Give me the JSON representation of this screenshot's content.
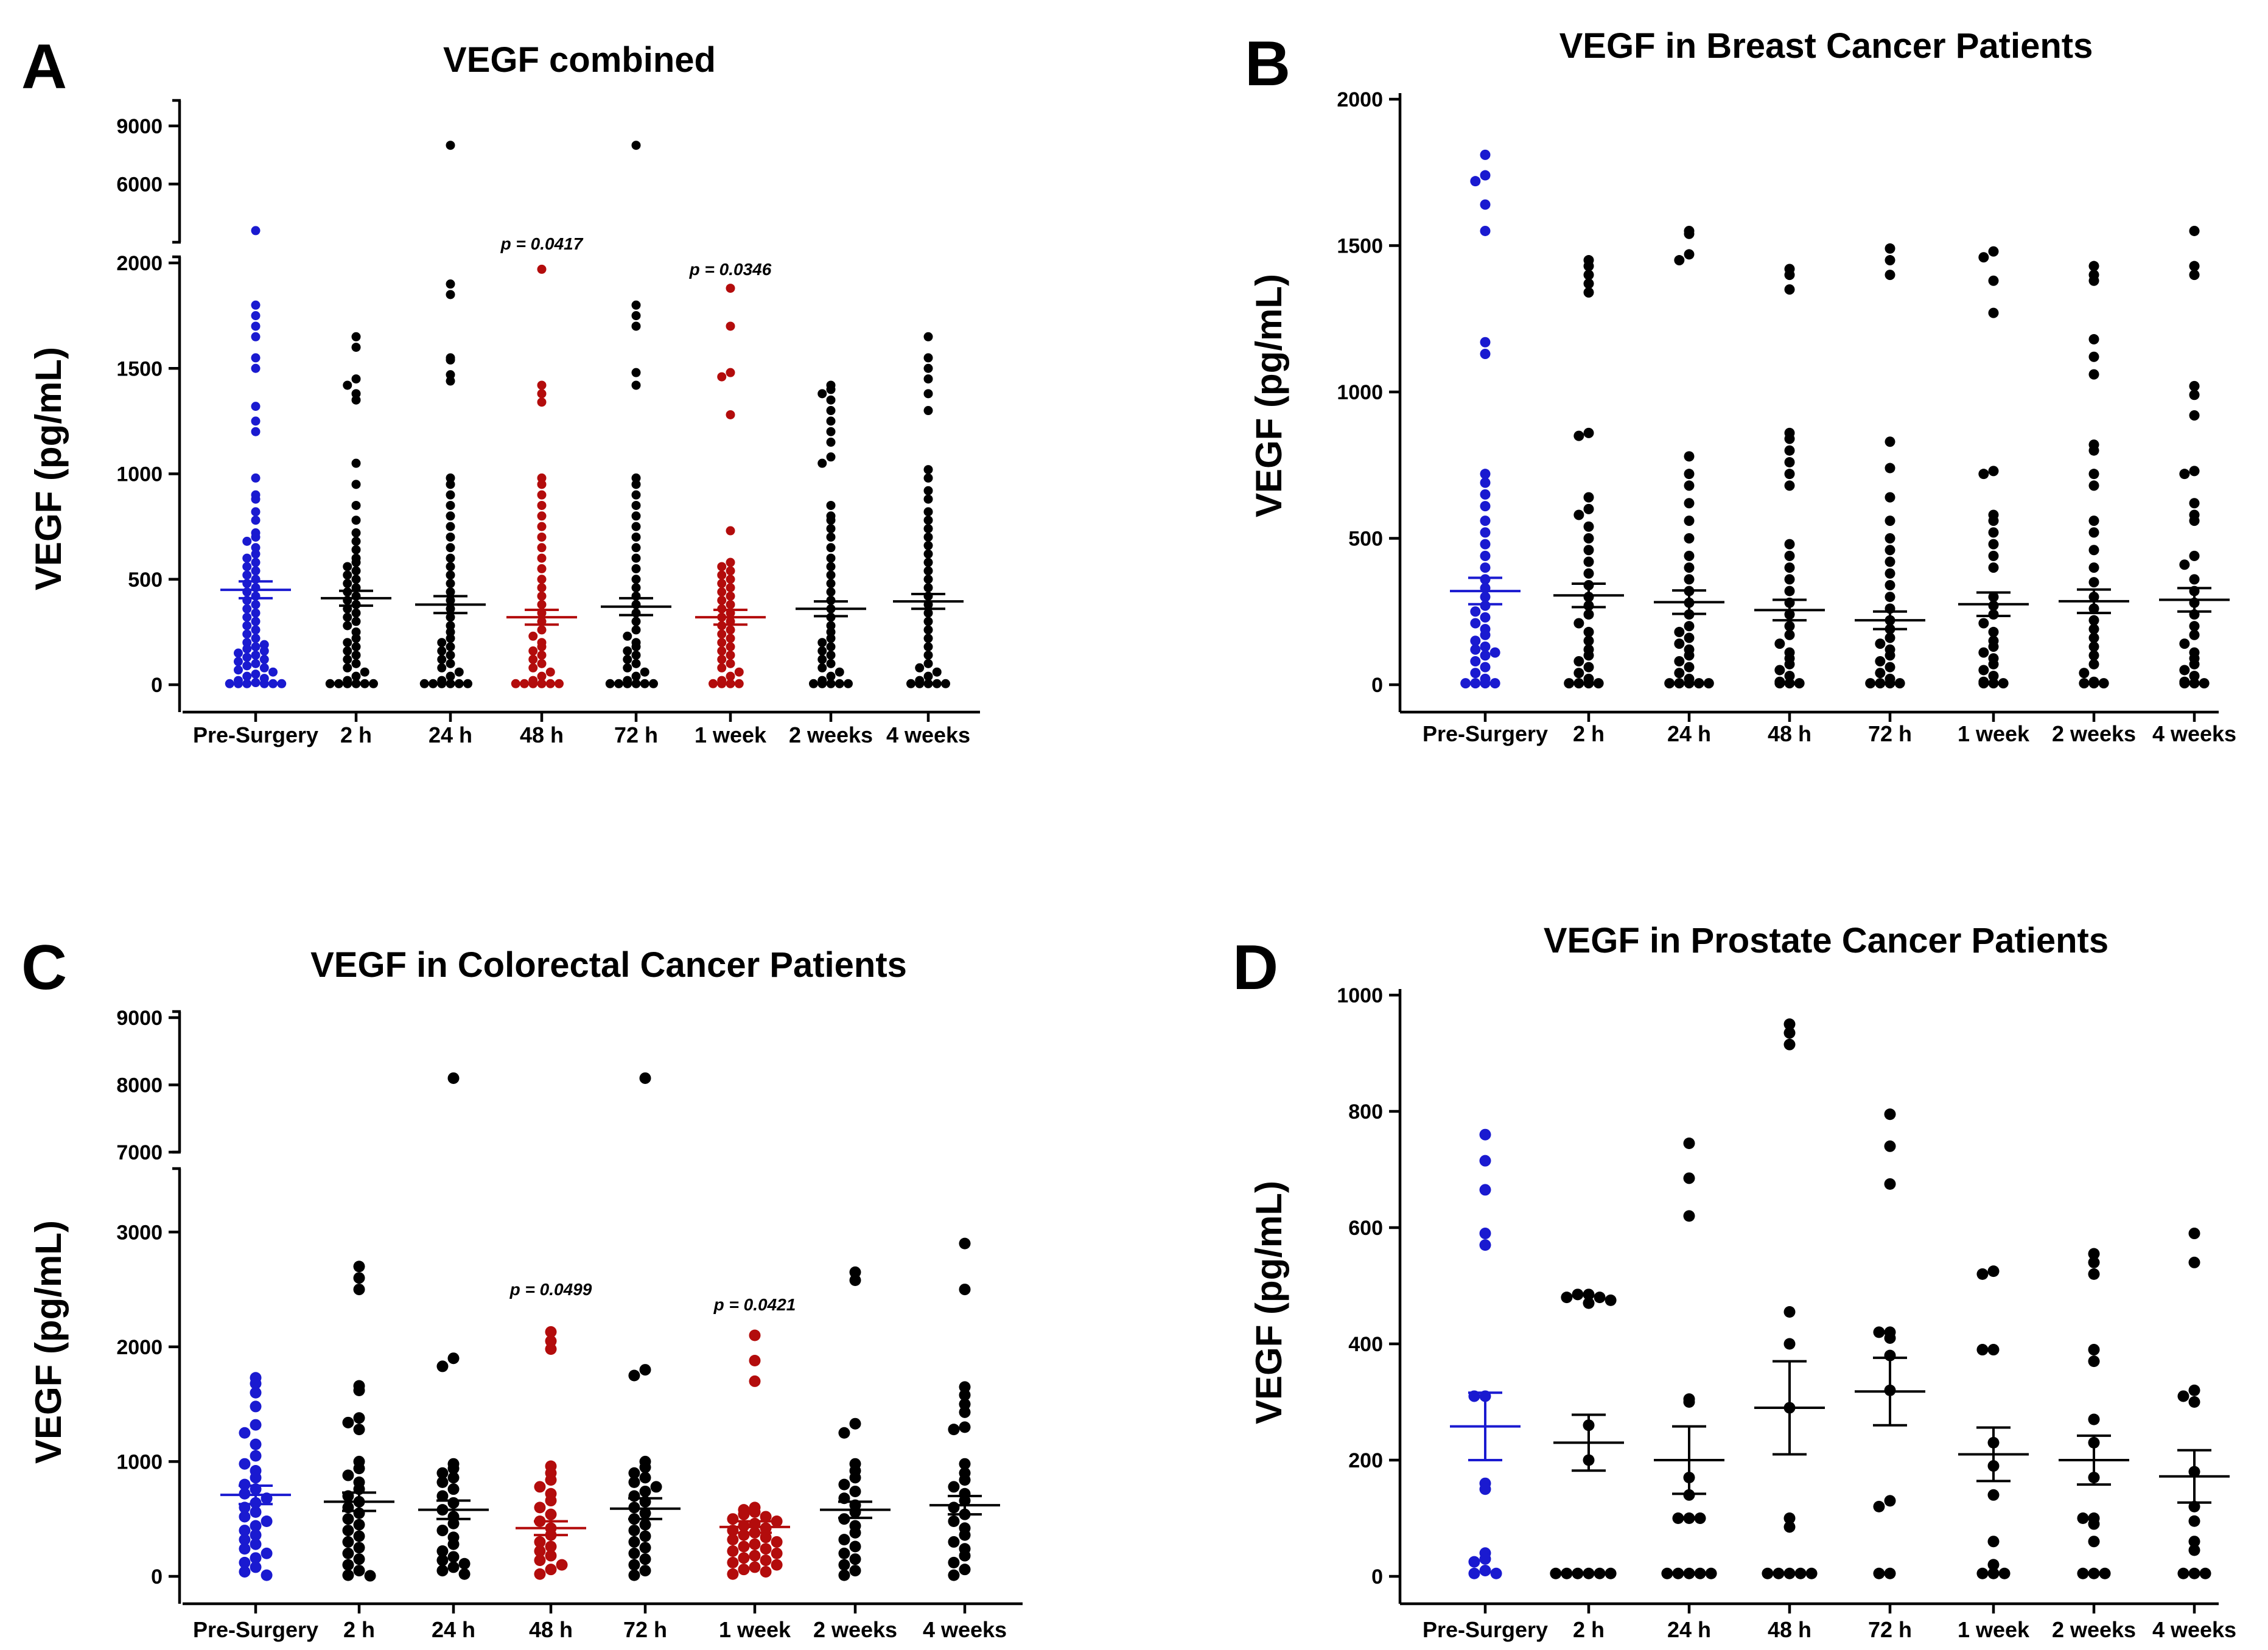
{
  "figure": {
    "ylabel": "VEGF (pg/mL)",
    "colors": {
      "presurgery": "#1a1ad0",
      "significant": "#b30c0c",
      "other": "#000000"
    }
  },
  "chart_data": [
    {
      "type": "scatter",
      "panel": "A",
      "title": "VEGF combined",
      "ylabel": "VEGF (pg/mL)",
      "categories": [
        "Pre-Surgery",
        "2 h",
        "24 h",
        "48 h",
        "72 h",
        "1 week",
        "2 weeks",
        "4 weeks"
      ],
      "y_axis": {
        "lower_range": [
          0,
          2000
        ],
        "lower_ticks": [
          "0",
          "500",
          "1000",
          "1500",
          "2000"
        ],
        "upper_range": [
          3000,
          10000
        ],
        "upper_ticks": [
          "6000",
          "9000"
        ]
      },
      "colors": [
        "presurgery",
        "other",
        "other",
        "significant",
        "other",
        "significant",
        "other",
        "other"
      ],
      "means": [
        450,
        410,
        380,
        320,
        370,
        320,
        360,
        395
      ],
      "sems": [
        40,
        35,
        40,
        35,
        40,
        35,
        35,
        35
      ],
      "values": [
        [
          3600,
          1800,
          1750,
          1700,
          1650,
          1550,
          1500,
          1320,
          1250,
          1200,
          980,
          900,
          880,
          820,
          780,
          720,
          700,
          680,
          650,
          620,
          600,
          580,
          560,
          540,
          520,
          500,
          480,
          460,
          440,
          420,
          400,
          380,
          360,
          340,
          320,
          300,
          280,
          260,
          240,
          220,
          200,
          190,
          180,
          170,
          160,
          150,
          140,
          130,
          120,
          110,
          100,
          90,
          80,
          70,
          60,
          50,
          40,
          30,
          20,
          10,
          5,
          5,
          5,
          5,
          5,
          5
        ],
        [
          1650,
          1600,
          1450,
          1420,
          1380,
          1350,
          1050,
          950,
          850,
          780,
          720,
          680,
          640,
          600,
          580,
          560,
          540,
          520,
          500,
          480,
          460,
          440,
          420,
          400,
          380,
          360,
          340,
          320,
          300,
          280,
          250,
          220,
          200,
          180,
          160,
          140,
          120,
          100,
          80,
          60,
          40,
          20,
          5,
          5,
          5,
          5,
          5,
          5
        ],
        [
          8000,
          1900,
          1850,
          1550,
          1540,
          1470,
          1440,
          980,
          950,
          900,
          850,
          800,
          750,
          700,
          650,
          600,
          560,
          520,
          480,
          440,
          400,
          360,
          320,
          280,
          250,
          220,
          200,
          180,
          160,
          140,
          120,
          100,
          80,
          60,
          40,
          20,
          5,
          5,
          5,
          5,
          5,
          5
        ],
        [
          1970,
          1420,
          1380,
          1340,
          980,
          950,
          900,
          850,
          800,
          750,
          700,
          650,
          600,
          550,
          500,
          460,
          420,
          380,
          340,
          300,
          260,
          230,
          200,
          180,
          160,
          140,
          120,
          100,
          80,
          60,
          40,
          20,
          5,
          5,
          5,
          5,
          5,
          5
        ],
        [
          8000,
          1800,
          1750,
          1700,
          1480,
          1420,
          980,
          950,
          900,
          850,
          800,
          750,
          700,
          650,
          600,
          550,
          500,
          460,
          420,
          380,
          340,
          300,
          260,
          230,
          200,
          180,
          160,
          140,
          120,
          100,
          80,
          60,
          40,
          20,
          5,
          5,
          5,
          5,
          5,
          5
        ],
        [
          1880,
          1700,
          1480,
          1460,
          1280,
          730,
          580,
          560,
          540,
          520,
          500,
          480,
          460,
          440,
          420,
          400,
          380,
          360,
          340,
          320,
          300,
          280,
          260,
          240,
          220,
          200,
          180,
          160,
          140,
          120,
          100,
          80,
          60,
          40,
          20,
          5,
          5,
          5,
          5
        ],
        [
          1420,
          1400,
          1380,
          1350,
          1300,
          1250,
          1200,
          1150,
          1080,
          1050,
          850,
          800,
          780,
          740,
          700,
          650,
          600,
          560,
          520,
          480,
          440,
          400,
          360,
          320,
          280,
          250,
          220,
          200,
          180,
          160,
          140,
          120,
          100,
          80,
          60,
          40,
          20,
          5,
          5,
          5,
          5,
          5
        ],
        [
          1650,
          1550,
          1500,
          1450,
          1380,
          1300,
          1020,
          980,
          920,
          880,
          820,
          780,
          740,
          700,
          660,
          620,
          580,
          540,
          500,
          460,
          420,
          380,
          340,
          300,
          260,
          220,
          180,
          140,
          100,
          80,
          60,
          40,
          20,
          5,
          5,
          5,
          5,
          5
        ]
      ],
      "annotations": [
        {
          "category": "48 h",
          "text": "p = 0.0417"
        },
        {
          "category": "1 week",
          "text": "p = 0.0346"
        }
      ]
    },
    {
      "type": "scatter",
      "panel": "B",
      "title": "VEGF in Breast Cancer Patients",
      "ylabel": "VEGF (pg/mL)",
      "categories": [
        "Pre-Surgery",
        "2 h",
        "24 h",
        "48 h",
        "72 h",
        "1 week",
        "2 weeks",
        "4 weeks"
      ],
      "y_axis": {
        "range": [
          0,
          2000
        ],
        "ticks": [
          "0",
          "500",
          "1000",
          "1500",
          "2000"
        ]
      },
      "colors": [
        "presurgery",
        "other",
        "other",
        "other",
        "other",
        "other",
        "other",
        "other"
      ],
      "means": [
        320,
        305,
        282,
        255,
        220,
        275,
        285,
        290
      ],
      "sems": [
        45,
        40,
        40,
        35,
        30,
        40,
        40,
        40
      ],
      "values": [
        [
          1810,
          1740,
          1720,
          1640,
          1550,
          1170,
          1130,
          720,
          690,
          650,
          610,
          560,
          520,
          480,
          440,
          400,
          360,
          330,
          300,
          270,
          250,
          230,
          210,
          190,
          170,
          150,
          130,
          120,
          110,
          100,
          80,
          60,
          40,
          20,
          5,
          5,
          5,
          5
        ],
        [
          1450,
          1430,
          1400,
          1370,
          1340,
          860,
          850,
          640,
          600,
          580,
          540,
          500,
          460,
          420,
          380,
          340,
          300,
          270,
          240,
          210,
          180,
          150,
          120,
          100,
          80,
          60,
          40,
          20,
          5,
          5,
          5,
          5
        ],
        [
          1550,
          1540,
          1470,
          1450,
          780,
          720,
          680,
          620,
          560,
          500,
          440,
          400,
          360,
          320,
          280,
          240,
          200,
          180,
          160,
          140,
          120,
          100,
          80,
          60,
          40,
          20,
          5,
          5,
          5,
          5,
          5
        ],
        [
          1420,
          1400,
          1350,
          860,
          840,
          800,
          760,
          720,
          680,
          480,
          440,
          400,
          360,
          320,
          280,
          240,
          200,
          170,
          140,
          110,
          90,
          70,
          50,
          30,
          10,
          5,
          5,
          5
        ],
        [
          1490,
          1450,
          1400,
          830,
          740,
          640,
          560,
          500,
          460,
          420,
          380,
          340,
          300,
          260,
          220,
          190,
          160,
          140,
          120,
          100,
          80,
          60,
          40,
          20,
          5,
          5,
          5,
          5
        ],
        [
          1480,
          1460,
          1380,
          1270,
          730,
          720,
          580,
          560,
          520,
          480,
          440,
          400,
          300,
          270,
          240,
          210,
          180,
          150,
          130,
          110,
          90,
          70,
          50,
          30,
          10,
          5,
          5,
          5
        ],
        [
          1430,
          1400,
          1380,
          1180,
          1120,
          1060,
          820,
          800,
          720,
          680,
          560,
          520,
          460,
          400,
          350,
          300,
          260,
          220,
          190,
          160,
          130,
          100,
          70,
          40,
          10,
          5,
          5,
          5
        ],
        [
          1550,
          1430,
          1400,
          1020,
          990,
          920,
          730,
          720,
          620,
          580,
          560,
          440,
          410,
          360,
          320,
          280,
          240,
          200,
          170,
          140,
          110,
          90,
          70,
          50,
          30,
          10,
          5,
          5,
          5
        ]
      ],
      "annotations": []
    },
    {
      "type": "scatter",
      "panel": "C",
      "title": "VEGF in Colorectal Cancer Patients",
      "ylabel": "VEGF (pg/mL)",
      "categories": [
        "Pre-Surgery",
        "2 h",
        "24 h",
        "48 h",
        "72 h",
        "1 week",
        "2 weeks",
        "4 weeks"
      ],
      "y_axis": {
        "lower_range": [
          0,
          3500
        ],
        "lower_ticks": [
          "0",
          "1000",
          "2000",
          "3000"
        ],
        "upper_range": [
          7000,
          9000
        ],
        "upper_ticks": [
          "7000",
          "8000",
          "9000"
        ]
      },
      "colors": [
        "presurgery",
        "other",
        "other",
        "significant",
        "other",
        "significant",
        "other",
        "other"
      ],
      "means": [
        710,
        650,
        580,
        420,
        590,
        430,
        580,
        620
      ],
      "sems": [
        80,
        80,
        80,
        60,
        90,
        50,
        70,
        80
      ],
      "values": [
        [
          1730,
          1680,
          1600,
          1480,
          1320,
          1250,
          1150,
          1050,
          980,
          920,
          860,
          800,
          760,
          720,
          680,
          640,
          600,
          560,
          520,
          480,
          440,
          400,
          360,
          320,
          280,
          240,
          200,
          160,
          120,
          80,
          40,
          10
        ],
        [
          2700,
          2600,
          2500,
          1660,
          1620,
          1380,
          1340,
          1280,
          1000,
          940,
          880,
          820,
          760,
          700,
          650,
          600,
          550,
          500,
          450,
          400,
          350,
          300,
          250,
          200,
          150,
          100,
          50,
          10,
          5
        ],
        [
          8100,
          1900,
          1830,
          980,
          940,
          900,
          860,
          820,
          760,
          700,
          640,
          580,
          520,
          460,
          400,
          340,
          280,
          220,
          170,
          140,
          110,
          80,
          50,
          20
        ],
        [
          2130,
          2050,
          1980,
          960,
          900,
          840,
          780,
          720,
          660,
          600,
          540,
          480,
          420,
          360,
          300,
          260,
          220,
          180,
          140,
          100,
          60,
          20
        ],
        [
          8100,
          1800,
          1750,
          1000,
          950,
          900,
          860,
          820,
          780,
          740,
          700,
          650,
          600,
          550,
          500,
          450,
          400,
          350,
          300,
          250,
          200,
          150,
          100,
          50,
          10
        ],
        [
          2100,
          1880,
          1700,
          600,
          580,
          560,
          540,
          520,
          500,
          480,
          460,
          440,
          420,
          400,
          380,
          360,
          340,
          320,
          300,
          280,
          260,
          240,
          220,
          200,
          180,
          160,
          140,
          120,
          100,
          80,
          60,
          40,
          20
        ],
        [
          2650,
          2580,
          1330,
          1250,
          980,
          920,
          860,
          800,
          740,
          680,
          620,
          560,
          500,
          440,
          380,
          320,
          260,
          200,
          150,
          100,
          50,
          10
        ],
        [
          2900,
          2500,
          1650,
          1580,
          1500,
          1430,
          1300,
          1280,
          980,
          900,
          840,
          780,
          720,
          660,
          600,
          540,
          480,
          420,
          360,
          300,
          240,
          180,
          120,
          60,
          10
        ]
      ],
      "annotations": [
        {
          "category": "48 h",
          "text": "p = 0.0499"
        },
        {
          "category": "1 week",
          "text": "p = 0.0421"
        }
      ]
    },
    {
      "type": "scatter",
      "panel": "D",
      "title": "VEGF in Prostate Cancer Patients",
      "ylabel": "VEGF (pg/mL)",
      "categories": [
        "Pre-Surgery",
        "2 h",
        "24 h",
        "48 h",
        "72 h",
        "1 week",
        "2 weeks",
        "4 weeks"
      ],
      "y_axis": {
        "range": [
          0,
          1000
        ],
        "ticks": [
          "0",
          "200",
          "400",
          "600",
          "800",
          "1000"
        ]
      },
      "colors": [
        "presurgery",
        "other",
        "other",
        "other",
        "other",
        "other",
        "other",
        "other"
      ],
      "means": [
        258,
        230,
        200,
        290,
        318,
        210,
        200,
        172
      ],
      "sems": [
        58,
        48,
        58,
        80,
        58,
        46,
        42,
        45
      ],
      "values": [
        [
          760,
          715,
          665,
          590,
          570,
          310,
          310,
          160,
          150,
          40,
          30,
          25,
          10,
          5,
          5
        ],
        [
          485,
          485,
          480,
          480,
          475,
          470,
          260,
          200,
          5,
          5,
          5,
          5,
          5,
          5
        ],
        [
          745,
          685,
          620,
          305,
          300,
          170,
          140,
          100,
          100,
          100,
          5,
          5,
          5,
          5,
          5
        ],
        [
          950,
          935,
          915,
          455,
          400,
          290,
          100,
          85,
          5,
          5,
          5,
          5,
          5
        ],
        [
          795,
          740,
          675,
          420,
          420,
          410,
          380,
          320,
          130,
          120,
          5,
          5
        ],
        [
          525,
          520,
          390,
          390,
          230,
          190,
          140,
          60,
          20,
          5,
          5,
          5
        ],
        [
          555,
          540,
          520,
          390,
          370,
          270,
          230,
          170,
          100,
          100,
          90,
          60,
          5,
          5,
          5
        ],
        [
          590,
          540,
          320,
          310,
          300,
          180,
          120,
          95,
          60,
          45,
          5,
          5,
          5
        ]
      ],
      "annotations": []
    }
  ]
}
